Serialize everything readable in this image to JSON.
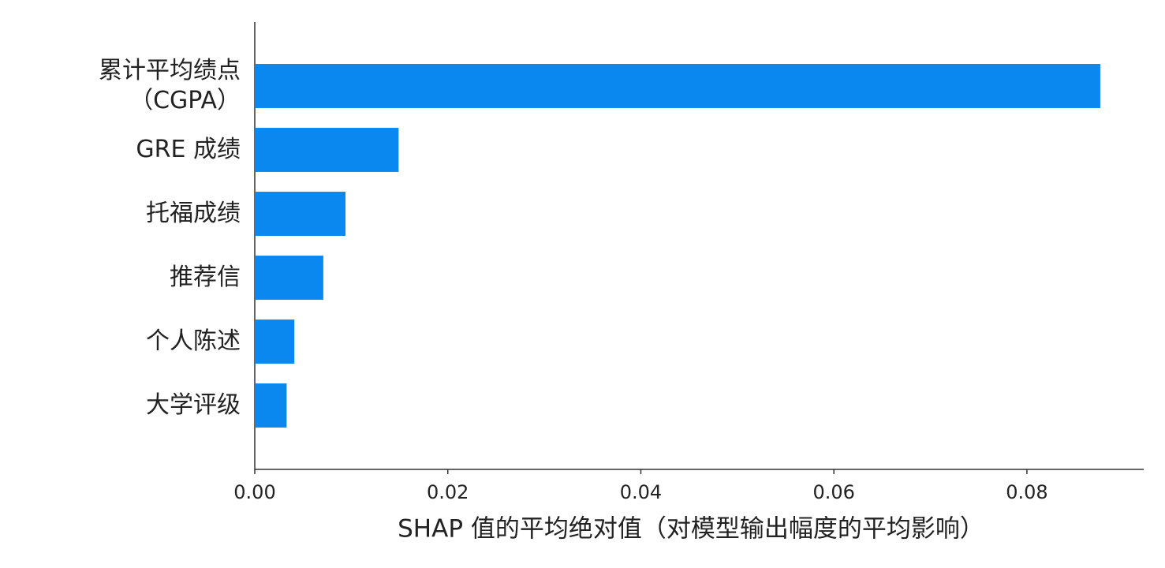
{
  "chart_data": {
    "type": "barh",
    "xlabel": "SHAP 值的平均绝对值（对模型输出幅度的平均影响）",
    "categories": [
      "累计平均绩点\n（CGPA）",
      "GRE 成绩",
      "托福成绩",
      "推荐信",
      "个人陈述",
      "大学评级"
    ],
    "values": [
      0.0876,
      0.0149,
      0.0094,
      0.0071,
      0.0041,
      0.0033
    ],
    "color": "#0a88f0",
    "xlim": [
      0,
      0.0921
    ],
    "xticks": [
      {
        "value": 0,
        "label": "0.00"
      },
      {
        "value": 0.02,
        "label": "0.02"
      },
      {
        "value": 0.04,
        "label": "0.04"
      },
      {
        "value": 0.06,
        "label": "0.06"
      },
      {
        "value": 0.08,
        "label": "0.08"
      }
    ]
  }
}
